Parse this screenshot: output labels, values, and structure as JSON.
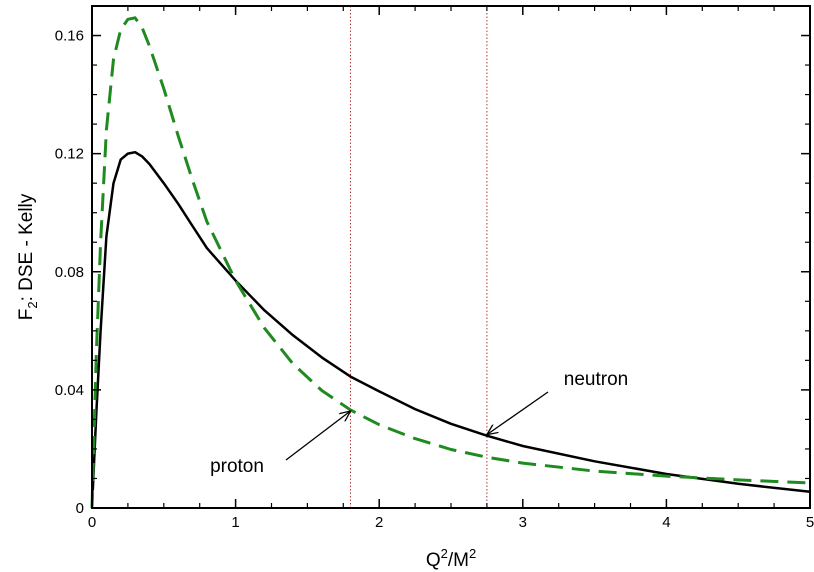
{
  "chart_data": {
    "type": "line",
    "xlabel": {
      "base": "Q",
      "sup1": "2",
      "mid": "/M",
      "sup2": "2"
    },
    "ylabel": {
      "base": "F",
      "sub": "2",
      "rest": ": DSE - Kelly"
    },
    "xlim": [
      0,
      5
    ],
    "ylim": [
      0,
      0.17
    ],
    "xticks": [
      0,
      1,
      2,
      3,
      4,
      5
    ],
    "xtick_labels": [
      "0",
      "1",
      "2",
      "3",
      "4",
      "5"
    ],
    "yticks": [
      0,
      0.04,
      0.08,
      0.12,
      0.16
    ],
    "ytick_labels": [
      "0",
      "0.04",
      "0.08",
      "0.12",
      "0.16"
    ],
    "grid": false,
    "reference_lines_x": [
      1.8,
      2.75
    ],
    "series": [
      {
        "name": "neutron",
        "color": "#000000",
        "style": "solid",
        "x": [
          0,
          0.03,
          0.06,
          0.1,
          0.15,
          0.2,
          0.25,
          0.3,
          0.35,
          0.4,
          0.5,
          0.6,
          0.7,
          0.8,
          1.0,
          1.2,
          1.4,
          1.6,
          1.8,
          2.0,
          2.25,
          2.5,
          2.75,
          3.0,
          3.5,
          4.0,
          4.5,
          5.0
        ],
        "y": [
          0,
          0.032,
          0.06,
          0.092,
          0.11,
          0.118,
          0.12,
          0.1205,
          0.119,
          0.1165,
          0.11,
          0.103,
          0.0955,
          0.088,
          0.077,
          0.067,
          0.0585,
          0.051,
          0.0445,
          0.0395,
          0.0335,
          0.0285,
          0.0245,
          0.021,
          0.0158,
          0.0115,
          0.0082,
          0.0055
        ]
      },
      {
        "name": "proton",
        "color": "#1f8a1f",
        "style": "dashed",
        "x": [
          0,
          0.03,
          0.06,
          0.1,
          0.15,
          0.2,
          0.25,
          0.3,
          0.35,
          0.4,
          0.5,
          0.6,
          0.7,
          0.8,
          1.0,
          1.2,
          1.4,
          1.6,
          1.8,
          2.0,
          2.25,
          2.5,
          2.75,
          3.0,
          3.5,
          4.0,
          4.5,
          5.0
        ],
        "y": [
          0,
          0.052,
          0.09,
          0.128,
          0.152,
          0.162,
          0.1655,
          0.166,
          0.1625,
          0.1565,
          0.142,
          0.126,
          0.111,
          0.097,
          0.077,
          0.061,
          0.0488,
          0.0398,
          0.0332,
          0.0282,
          0.0235,
          0.0198,
          0.0172,
          0.0152,
          0.0125,
          0.0108,
          0.0095,
          0.0085
        ]
      }
    ],
    "annotations": [
      {
        "text": "neutron",
        "arrow_to": [
          2.75,
          0.0245
        ]
      },
      {
        "text": "proton",
        "arrow_to": [
          1.8,
          0.0325
        ]
      }
    ]
  }
}
